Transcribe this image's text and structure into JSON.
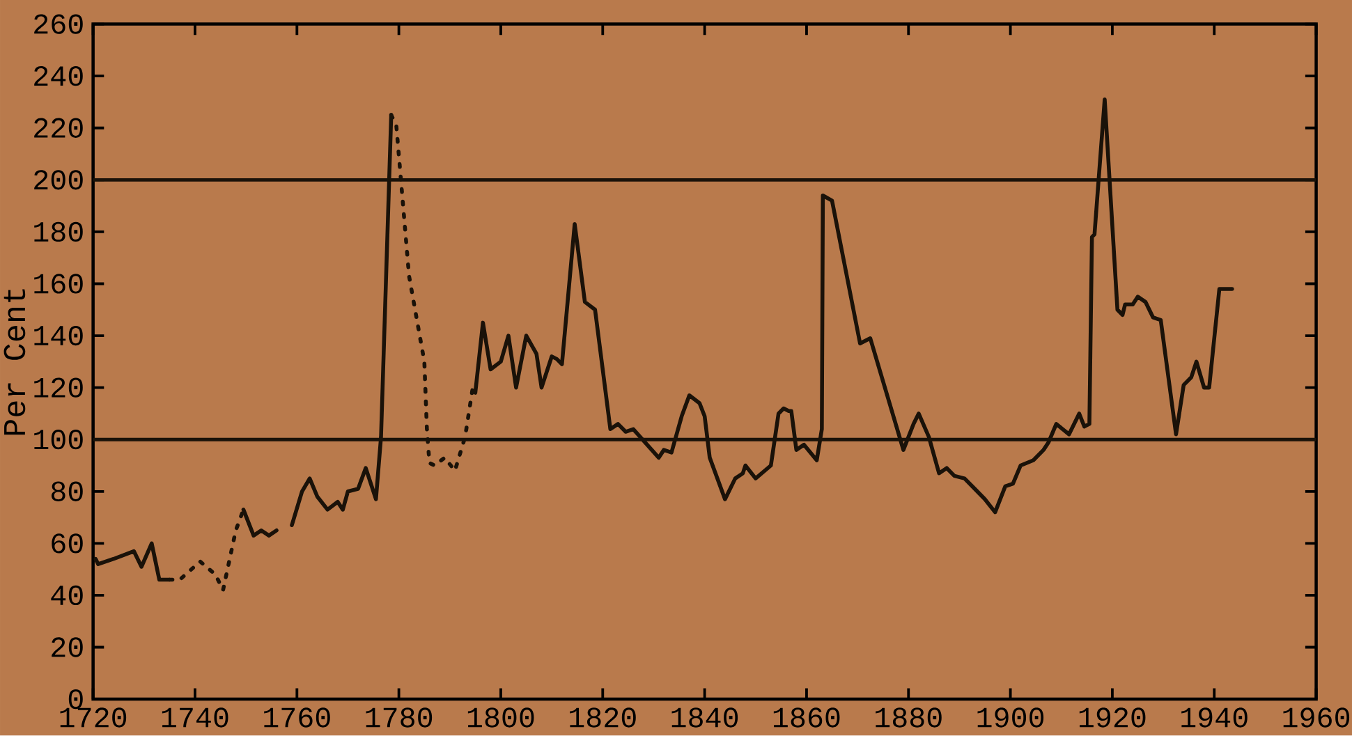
{
  "chart_data": {
    "type": "line",
    "ylabel": "Per Cent",
    "xlim": [
      1720,
      1960
    ],
    "ylim": [
      0,
      260
    ],
    "xticks": [
      1720,
      1740,
      1760,
      1780,
      1800,
      1820,
      1840,
      1860,
      1880,
      1900,
      1920,
      1940,
      1960
    ],
    "yticks": [
      0,
      20,
      40,
      60,
      80,
      100,
      120,
      140,
      160,
      180,
      200,
      220,
      240,
      260
    ],
    "grid": false,
    "ref_lines": [
      {
        "axis": "y",
        "value": 100,
        "color": "#1a1209"
      },
      {
        "axis": "y",
        "value": 200,
        "color": "#1a1209"
      }
    ],
    "series": [
      {
        "color": "#1a1209",
        "line_style": "solid",
        "x": [
          1720.5,
          1721,
          1724,
          1728,
          1729.5,
          1731.5,
          1733,
          1735,
          1742,
          1749.5,
          1751.5,
          1753,
          1754.5,
          1756,
          1757.5,
          1759,
          1761,
          1762.5,
          1764,
          1766,
          1768,
          1769,
          1770,
          1772,
          1773.5,
          1775.5,
          1776.5,
          1778.5,
          1787,
          1795,
          1796.5,
          1798,
          1800,
          1801.5,
          1803,
          1805,
          1807,
          1808,
          1810,
          1811,
          1812,
          1814.5,
          1816.5,
          1818.5,
          1821.5,
          1823,
          1824.5,
          1826,
          1831,
          1832,
          1833.5,
          1835.5,
          1837,
          1839,
          1840,
          1841,
          1844,
          1846,
          1847.5,
          1848,
          1850,
          1853,
          1854.5,
          1855.5,
          1856.5,
          1857,
          1858,
          1859.5,
          1862,
          1863,
          1863.2,
          1865,
          1870.5,
          1872.5,
          1879,
          1881,
          1882,
          1884,
          1886,
          1887.5,
          1889,
          1891,
          1893,
          1895,
          1897,
          1899,
          1900.5,
          1902,
          1904.5,
          1906.5,
          1907.5,
          1909,
          1911.5,
          1913.5,
          1914.5,
          1915.5,
          1916,
          1916.5,
          1918.5,
          1921,
          1922,
          1922.5,
          1924,
          1925,
          1926.5,
          1928,
          1929.5,
          1932.5,
          1934,
          1935.5,
          1936.5,
          1938,
          1939,
          1941,
          1943.5
        ],
        "values": [
          54,
          52,
          54,
          57,
          51,
          60,
          46,
          46,
          null,
          73,
          63,
          65,
          63,
          65,
          null,
          67,
          80,
          85,
          78,
          73,
          76,
          73,
          80,
          81,
          89,
          77,
          101,
          225,
          null,
          118,
          145,
          127,
          130,
          140,
          120,
          140,
          133,
          120,
          132,
          131,
          129,
          183,
          153,
          150,
          104,
          106,
          103,
          104,
          93,
          96,
          95,
          109,
          117,
          114,
          109,
          93,
          77,
          85,
          87,
          90,
          85,
          90,
          110,
          112,
          111,
          111,
          96,
          98,
          92,
          104,
          194,
          192,
          137,
          139,
          96,
          106,
          110,
          101,
          87,
          89,
          86,
          85,
          81,
          77,
          72,
          82,
          83,
          90,
          92,
          96,
          99,
          106,
          102,
          110,
          105,
          106,
          178,
          179,
          231,
          150,
          148,
          152,
          152,
          155,
          153,
          147,
          146,
          102,
          121,
          124,
          130,
          120,
          120,
          158,
          158
        ]
      },
      {
        "color": "#1a1209",
        "line_style": "dotted",
        "x": [
          1735,
          1737,
          1741,
          1744,
          1745.5,
          1748,
          1749.5,
          1764,
          1778.5,
          1779.5,
          1782,
          1785,
          1785.5,
          1786,
          1787,
          1789,
          1791,
          1793,
          1794.5,
          1795
        ],
        "values": [
          46,
          46,
          53,
          48,
          42,
          65,
          73,
          null,
          225,
          221,
          163,
          130,
          104,
          91,
          90,
          93,
          88,
          101,
          120,
          118
        ]
      }
    ]
  }
}
